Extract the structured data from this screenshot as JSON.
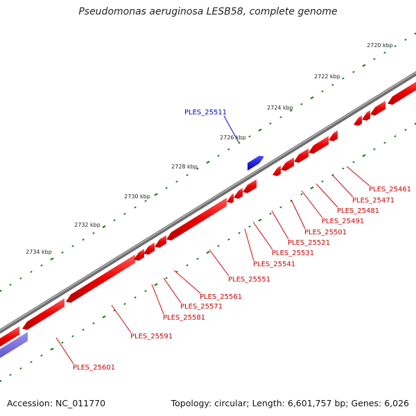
{
  "title": "Pseudomonas aeruginosa LESB58, complete genome",
  "footer": {
    "accession": "Accession: NC_011770",
    "summary": "Topology: circular; Length: 6,601,757 bp; Genes: 6,026"
  },
  "colors": {
    "backbone": "#8c8c8c",
    "forward_gene": "#0000cc",
    "reverse_gene": "#ff0000",
    "selected_gene": "#6b5fd8",
    "tick": "#1a7a1a",
    "forward_label": "#0000cc",
    "reverse_label": "#cc0000"
  },
  "scale_labels": [
    "2720 kbp",
    "2722 kbp",
    "2724 kbp",
    "2726 kbp",
    "2728 kbp",
    "2730 kbp",
    "2732 kbp",
    "2734 kbp"
  ],
  "forward_labels": [
    "PLES_25511"
  ],
  "reverse_labels": [
    "PLES_25461",
    "PLES_25471",
    "PLES_25481",
    "PLES_25491",
    "PLES_25501",
    "PLES_25521",
    "PLES_25531",
    "PLES_25541",
    "PLES_25551",
    "PLES_25561",
    "PLES_25571",
    "PLES_25581",
    "PLES_25591",
    "PLES_25601"
  ]
}
